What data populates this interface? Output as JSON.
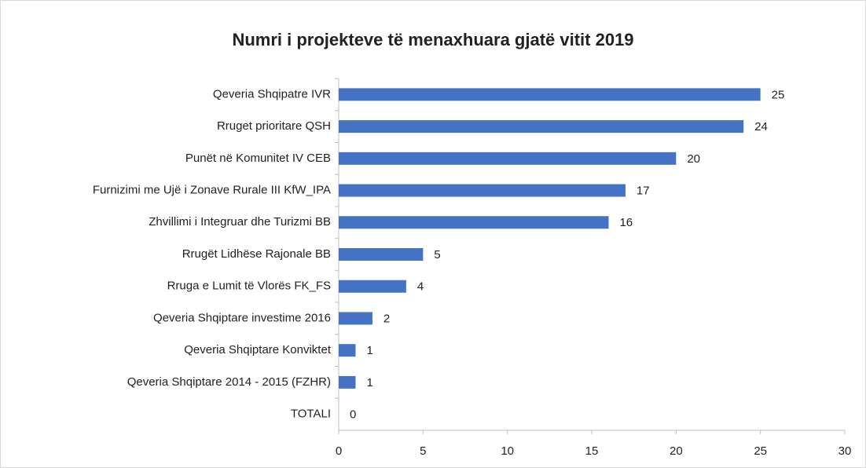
{
  "chart_data": {
    "type": "bar",
    "orientation": "horizontal",
    "title": "Numri i projekteve të menaxhuara gjatë vitit 2019",
    "categories": [
      "Qeveria Shqipatre IVR",
      "Rruget prioritare QSH",
      "Punët në Komunitet IV CEB",
      "Furnizimi me Ujë i Zonave Rurale III KfW_IPA",
      "Zhvillimi i Integruar dhe Turizmi BB",
      "Rrugët Lidhëse Rajonale BB",
      "Rruga e Lumit të Vlorës FK_FS",
      "Qeveria Shqiptare investime 2016",
      "Qeveria Shqiptare Konviktet",
      "Qeveria Shqiptare 2014 - 2015 (FZHR)",
      "TOTALI"
    ],
    "values": [
      25,
      24,
      20,
      17,
      16,
      5,
      4,
      2,
      1,
      1,
      0
    ],
    "color": "#4472c4",
    "xlim": [
      0,
      30
    ],
    "xticks": [
      0,
      5,
      10,
      15,
      20,
      25,
      30
    ],
    "grid": false
  }
}
